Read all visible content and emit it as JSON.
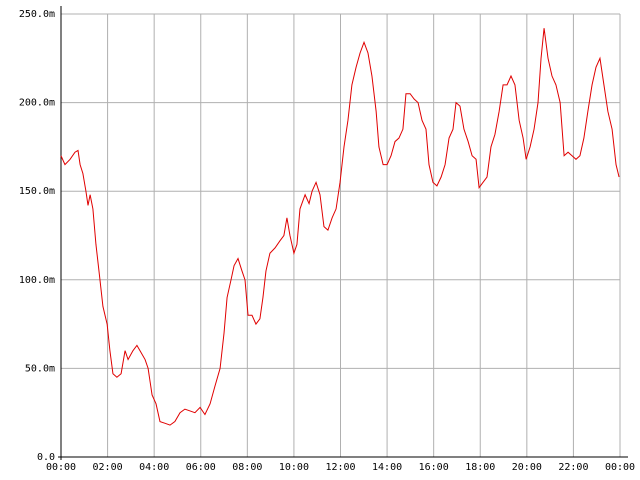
{
  "chart_data": {
    "type": "line",
    "x": [
      0,
      0.17,
      0.39,
      0.6,
      0.73,
      0.82,
      0.94,
      1.07,
      1.16,
      1.25,
      1.37,
      1.5,
      1.63,
      1.8,
      1.98,
      2.1,
      2.23,
      2.4,
      2.58,
      2.75,
      2.88,
      3.09,
      3.26,
      3.39,
      3.61,
      3.74,
      3.91,
      4.08,
      4.25,
      4.47,
      4.68,
      4.89,
      5.11,
      5.32,
      5.54,
      5.75,
      5.97,
      6.18,
      6.4,
      6.61,
      6.83,
      7.0,
      7.13,
      7.3,
      7.43,
      7.6,
      7.77,
      7.9,
      8.03,
      8.2,
      8.37,
      8.54,
      8.67,
      8.8,
      8.97,
      9.19,
      9.4,
      9.57,
      9.7,
      9.83,
      10.0,
      10.13,
      10.26,
      10.48,
      10.65,
      10.78,
      10.95,
      11.12,
      11.29,
      11.46,
      11.64,
      11.81,
      11.98,
      12.15,
      12.32,
      12.49,
      12.67,
      12.84,
      13.01,
      13.18,
      13.35,
      13.53,
      13.65,
      13.83,
      14.0,
      14.17,
      14.34,
      14.51,
      14.68,
      14.81,
      14.99,
      15.16,
      15.33,
      15.5,
      15.67,
      15.8,
      15.97,
      16.14,
      16.32,
      16.49,
      16.66,
      16.83,
      16.96,
      17.13,
      17.3,
      17.48,
      17.65,
      17.82,
      17.95,
      18.12,
      18.29,
      18.46,
      18.63,
      18.81,
      18.98,
      19.15,
      19.32,
      19.49,
      19.67,
      19.84,
      19.97,
      20.14,
      20.31,
      20.48,
      20.61,
      20.74,
      20.91,
      21.08,
      21.25,
      21.43,
      21.6,
      21.77,
      21.94,
      22.11,
      22.28,
      22.45,
      22.62,
      22.8,
      22.97,
      23.14,
      23.31,
      23.48,
      23.66,
      23.83,
      23.96
    ],
    "series": [
      {
        "color": "#e00000",
        "values": [
          170,
          165,
          168,
          172,
          173,
          165,
          160,
          150,
          142,
          148,
          140,
          120,
          105,
          85,
          75,
          60,
          47,
          45,
          47,
          60,
          55,
          60,
          63,
          60,
          55,
          50,
          35,
          30,
          20,
          19,
          18,
          20,
          25,
          27,
          26,
          25,
          28,
          24,
          30,
          40,
          50,
          70,
          90,
          100,
          108,
          112,
          105,
          100,
          80,
          80,
          75,
          78,
          90,
          105,
          115,
          118,
          122,
          125,
          135,
          125,
          115,
          120,
          140,
          148,
          143,
          150,
          155,
          148,
          130,
          128,
          135,
          140,
          155,
          175,
          190,
          210,
          220,
          228,
          234,
          228,
          215,
          195,
          175,
          165,
          165,
          170,
          178,
          180,
          185,
          205,
          205,
          202,
          200,
          190,
          185,
          165,
          155,
          153,
          158,
          165,
          180,
          185,
          200,
          198,
          185,
          178,
          170,
          168,
          152,
          155,
          158,
          175,
          182,
          195,
          210,
          210,
          215,
          210,
          190,
          180,
          168,
          175,
          185,
          200,
          225,
          242,
          225,
          215,
          210,
          200,
          170,
          172,
          170,
          168,
          170,
          180,
          195,
          210,
          220,
          225,
          210,
          195,
          185,
          165,
          158
        ]
      }
    ],
    "xlim": [
      0,
      24
    ],
    "xticks": [
      {
        "value": 0,
        "label": "00:00"
      },
      {
        "value": 2,
        "label": "02:00"
      },
      {
        "value": 4,
        "label": "04:00"
      },
      {
        "value": 6,
        "label": "06:00"
      },
      {
        "value": 8,
        "label": "08:00"
      },
      {
        "value": 10,
        "label": "10:00"
      },
      {
        "value": 12,
        "label": "12:00"
      },
      {
        "value": 14,
        "label": "14:00"
      },
      {
        "value": 16,
        "label": "16:00"
      },
      {
        "value": 18,
        "label": "18:00"
      },
      {
        "value": 20,
        "label": "20:00"
      },
      {
        "value": 22,
        "label": "22:00"
      },
      {
        "value": 24,
        "label": "00:00"
      }
    ],
    "ylim": [
      0,
      250
    ],
    "yticks": [
      {
        "value": 0,
        "label": "0.0"
      },
      {
        "value": 50,
        "label": "50.0m"
      },
      {
        "value": 100,
        "label": "100.0m"
      },
      {
        "value": 150,
        "label": "150.0m"
      },
      {
        "value": 200,
        "label": "200.0m"
      },
      {
        "value": 250,
        "label": "250.0m"
      }
    ],
    "grid": true
  }
}
